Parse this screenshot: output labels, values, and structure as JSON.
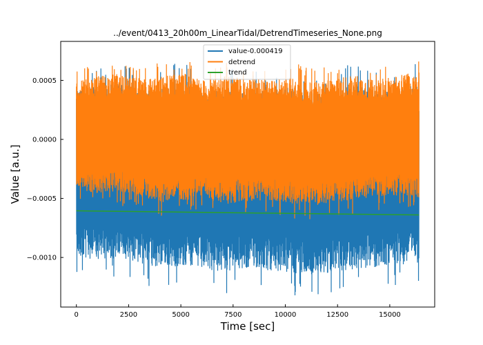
{
  "chart_data": {
    "type": "line",
    "title": "../event/0413_20h00m_LinearTidal/DetrendTimeseries_None.png",
    "xlabel": "Time [sec]",
    "ylabel": "Value [a.u.]",
    "xlim": [
      -750,
      17150
    ],
    "ylim": [
      -0.00142,
      0.00083
    ],
    "xticks": [
      0,
      2500,
      5000,
      7500,
      10000,
      12500,
      15000
    ],
    "xtick_labels": [
      "0",
      "2500",
      "5000",
      "7500",
      "10000",
      "12500",
      "15000"
    ],
    "yticks": [
      0.0005,
      0.0,
      -0.0005,
      -0.001
    ],
    "ytick_labels": [
      "0.0005",
      "0.0000",
      "−0.0005",
      "−0.0010"
    ],
    "grid": false,
    "legend_position": "top-center",
    "series": [
      {
        "name": "value-0.000419",
        "color": "#1f77b4",
        "x_range": [
          0,
          16400
        ],
        "band_upper": [
          0.00052,
          0.00055,
          0.00058,
          0.00051,
          0.00054,
          0.00057,
          0.0005,
          0.00053,
          0.00048,
          0.00052,
          0.00055,
          0.00049,
          0.00053,
          0.00056,
          0.00051,
          0.00054,
          0.00058
        ],
        "band_lower": [
          -0.00108,
          -0.00112,
          -0.0011,
          -0.00115,
          -0.00118,
          -0.00117,
          -0.0012,
          -0.00122,
          -0.00119,
          -0.00121,
          -0.00123,
          -0.00126,
          -0.00122,
          -0.0012,
          -0.00118,
          -0.00116,
          -0.00114
        ]
      },
      {
        "name": "detrend",
        "color": "#ff7f0e",
        "x_range": [
          0,
          16400
        ],
        "band_upper": [
          0.00055,
          0.0006,
          0.00062,
          0.00058,
          0.0006,
          0.00063,
          0.00056,
          0.00061,
          0.00058,
          0.00057,
          0.0006,
          0.00055,
          0.00058,
          0.00061,
          0.00057,
          0.0006,
          0.00066
        ],
        "band_lower": [
          -0.00048,
          -0.00052,
          -0.0005,
          -0.00055,
          -0.0006,
          -0.00058,
          -0.00057,
          -0.00062,
          -0.00059,
          -0.00058,
          -0.00061,
          -0.00063,
          -0.0006,
          -0.00058,
          -0.00055,
          -0.00054,
          -0.00056
        ]
      },
      {
        "name": "trend",
        "color": "#2ca02c",
        "x": [
          0,
          16400
        ],
        "values": [
          -0.000605,
          -0.00064
        ]
      }
    ]
  }
}
